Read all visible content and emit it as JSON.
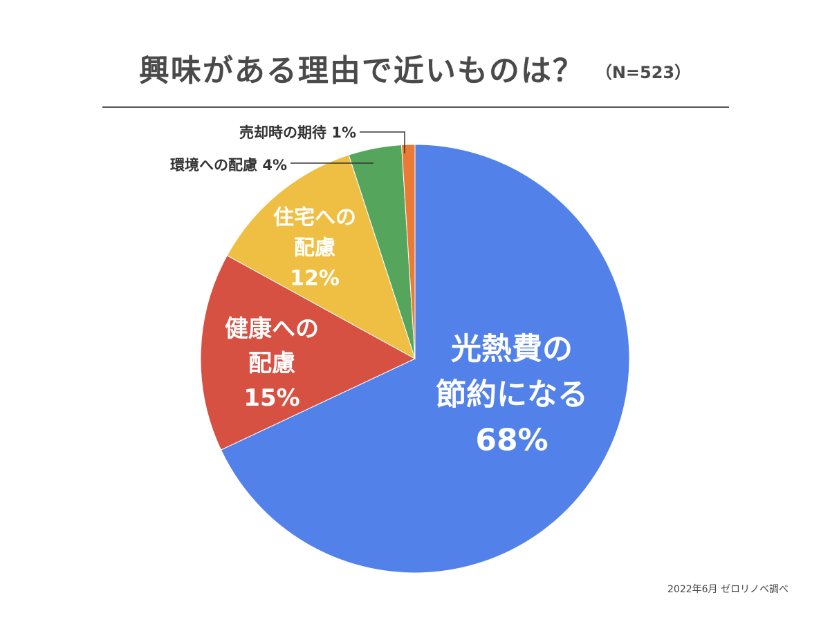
{
  "header": {
    "title": "興味がある理由で近いものは？",
    "sample": "（N=523）"
  },
  "footer": {
    "source": "2022年6月 ゼロリノベ調べ"
  },
  "chart_data": {
    "type": "pie",
    "start_angle_deg": 0,
    "direction": "clockwise",
    "label_style": "inside for large slices; leader lines for the two smallest",
    "slices": [
      {
        "lines": [
          "光熱費の",
          "節約になる"
        ],
        "value": 68,
        "display": "68%",
        "color": "#5282e9"
      },
      {
        "lines": [
          "健康への",
          "配慮"
        ],
        "value": 15,
        "display": "15%",
        "color": "#d65142"
      },
      {
        "lines": [
          "住宅への",
          "配慮"
        ],
        "value": 12,
        "display": "12%",
        "color": "#efbf44"
      },
      {
        "lines": [
          "環境への配慮"
        ],
        "value": 4,
        "display": "4%",
        "color": "#55a65c"
      },
      {
        "lines": [
          "売却時の期待"
        ],
        "value": 1,
        "display": "1%",
        "color": "#eb7a34"
      }
    ]
  }
}
